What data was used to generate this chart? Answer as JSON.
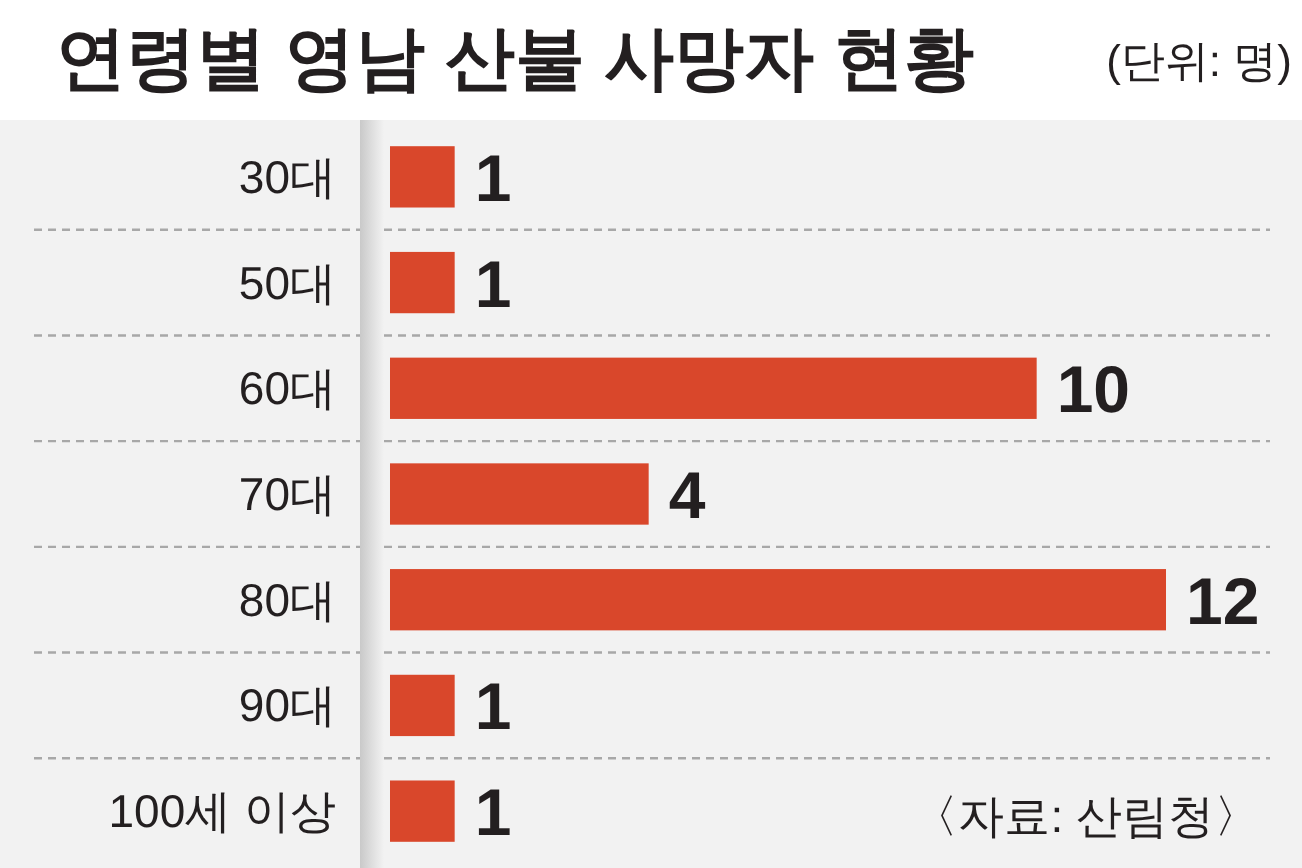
{
  "chart_data": {
    "type": "bar",
    "orientation": "horizontal",
    "title": "연령별 영남 산불 사망자 현황",
    "subtitle": "(단위: 명)",
    "categories": [
      "30대",
      "50대",
      "60대",
      "70대",
      "80대",
      "90대",
      "100세 이상"
    ],
    "values": [
      1,
      1,
      10,
      4,
      12,
      1,
      1
    ],
    "color": "#d9472b",
    "data_labels": true,
    "grid": "y",
    "tick_labels": "y",
    "annotations": [
      "〈자료: 산림청〉"
    ]
  }
}
